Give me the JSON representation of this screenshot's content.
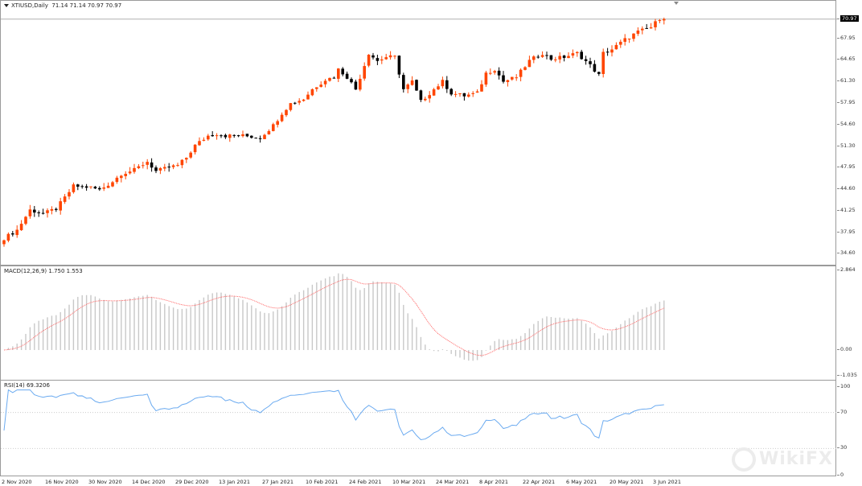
{
  "header": {
    "symbol": "XTIUSD,Daily",
    "ohlc": "71.14 71.14 70.97 70.97"
  },
  "price_axis": {
    "current": "70.97",
    "labels": [
      "67.95",
      "64.65",
      "61.30",
      "57.95",
      "54.60",
      "51.30",
      "47.95",
      "44.60",
      "41.25",
      "37.95",
      "34.60"
    ],
    "label_values": [
      67.95,
      64.65,
      61.3,
      57.95,
      54.6,
      51.3,
      47.95,
      44.6,
      41.25,
      37.95,
      34.6
    ]
  },
  "macd": {
    "label": "MACD(12,26,9) 1.750 1.553",
    "axis": [
      "2.864",
      "0.00",
      "-1.035"
    ],
    "axis_values": [
      2.864,
      0,
      -1.035
    ]
  },
  "rsi": {
    "label": "RSI(14) 69.3206",
    "axis": [
      "100",
      "70",
      "30",
      "0"
    ],
    "axis_values": [
      100,
      70,
      30,
      0
    ]
  },
  "time_axis": [
    "2 Nov 2020",
    "16 Nov 2020",
    "30 Nov 2020",
    "14 Dec 2020",
    "29 Dec 2020",
    "13 Jan 2021",
    "27 Jan 2021",
    "10 Feb 2021",
    "24 Feb 2021",
    "10 Mar 2021",
    "24 Mar 2021",
    "8 Apr 2021",
    "22 Apr 2021",
    "6 May 2021",
    "20 May 2021",
    "3 Jun 2021"
  ],
  "watermark": "WikiFX",
  "colors": {
    "bull": "#ff4500",
    "bear": "#000000",
    "histogram": "#c8c8c8",
    "signal": "#ff6060",
    "rsi": "#6aaaf0"
  },
  "chart_data": {
    "type": "candlestick",
    "bars": 153,
    "close_keypoints": [
      [
        0,
        37.0
      ],
      [
        3,
        38.3
      ],
      [
        6,
        41.4
      ],
      [
        9,
        40.8
      ],
      [
        12,
        41.6
      ],
      [
        14,
        43.3
      ],
      [
        16,
        45.1
      ],
      [
        20,
        44.9
      ],
      [
        22,
        44.5
      ],
      [
        25,
        45.8
      ],
      [
        27,
        47.0
      ],
      [
        30,
        47.6
      ],
      [
        33,
        48.9
      ],
      [
        35,
        47.4
      ],
      [
        38,
        48.0
      ],
      [
        40,
        48.3
      ],
      [
        42,
        49.5
      ],
      [
        44,
        51.4
      ],
      [
        47,
        52.9
      ],
      [
        49,
        53.2
      ],
      [
        51,
        52.9
      ],
      [
        55,
        52.9
      ],
      [
        59,
        52.6
      ],
      [
        62,
        54.5
      ],
      [
        64,
        56.4
      ],
      [
        66,
        57.9
      ],
      [
        69,
        58.6
      ],
      [
        71,
        60.1
      ],
      [
        74,
        61.6
      ],
      [
        76,
        62.0
      ],
      [
        77,
        63.2
      ],
      [
        79,
        62.0
      ],
      [
        81,
        60.1
      ],
      [
        84,
        65.7
      ],
      [
        86,
        64.5
      ],
      [
        88,
        65.1
      ],
      [
        90,
        65.1
      ],
      [
        92,
        60.1
      ],
      [
        94,
        61.3
      ],
      [
        96,
        58.2
      ],
      [
        99,
        60.1
      ],
      [
        101,
        61.3
      ],
      [
        103,
        59.5
      ],
      [
        106,
        59.1
      ],
      [
        109,
        59.5
      ],
      [
        111,
        62.6
      ],
      [
        113,
        63.2
      ],
      [
        115,
        61.3
      ],
      [
        118,
        62.0
      ],
      [
        121,
        64.5
      ],
      [
        124,
        65.7
      ],
      [
        126,
        64.8
      ],
      [
        129,
        65.1
      ],
      [
        132,
        65.7
      ],
      [
        135,
        63.8
      ],
      [
        137,
        62.3
      ],
      [
        138,
        65.7
      ],
      [
        140,
        66.3
      ],
      [
        143,
        67.8
      ],
      [
        146,
        69.0
      ],
      [
        149,
        69.7
      ],
      [
        151,
        71.1
      ],
      [
        152,
        70.97
      ]
    ]
  }
}
